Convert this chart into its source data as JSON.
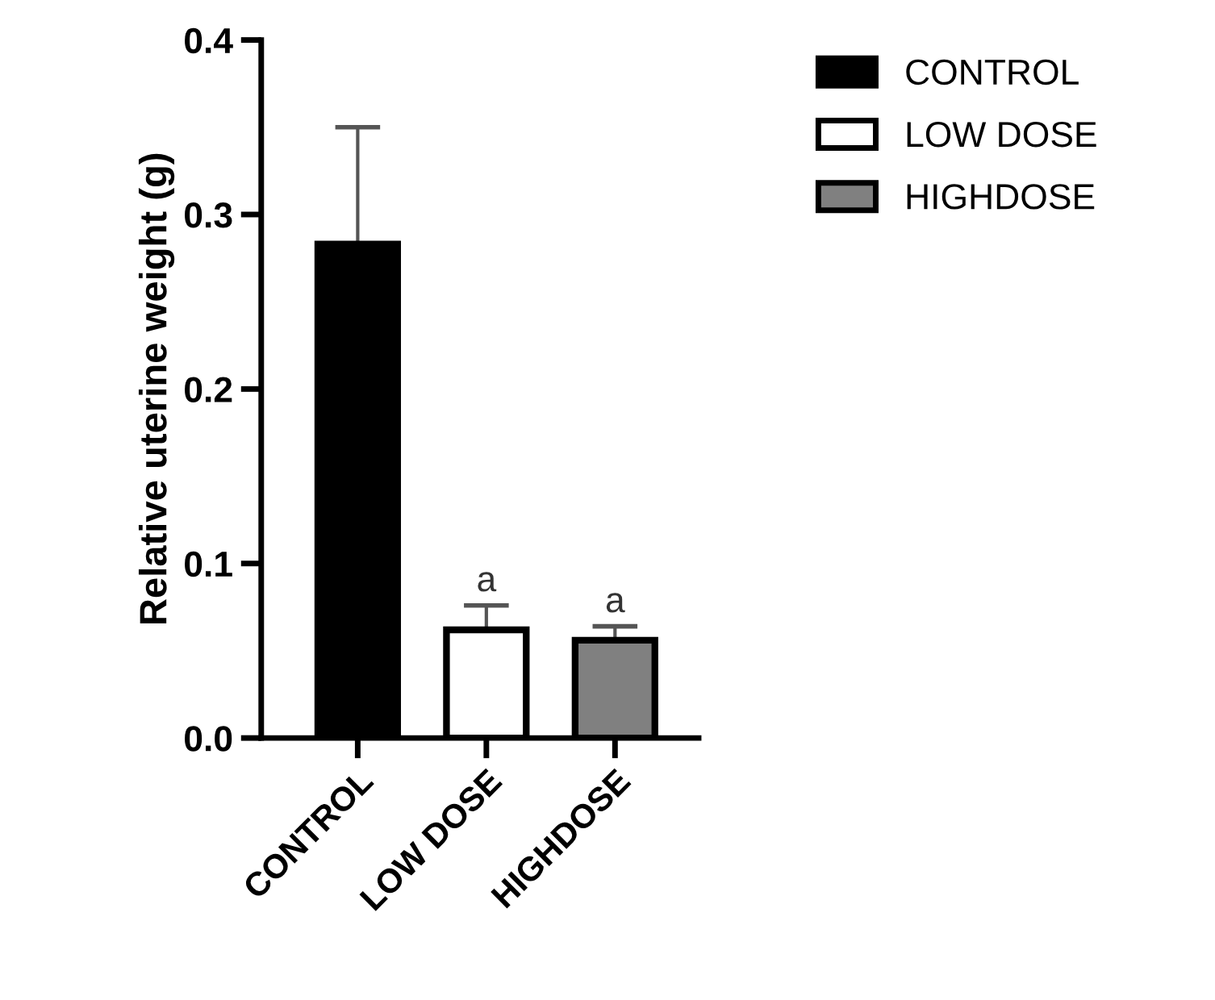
{
  "chart_data": {
    "type": "bar",
    "ylabel": "Relative uterine weight (g)",
    "categories": [
      "CONTROL",
      "LOW DOSE",
      "HIGHDOSE"
    ],
    "series": [
      {
        "name": "CONTROL",
        "color": "#000000",
        "values": [
          0.283,
          null,
          null
        ],
        "errors": [
          0.067,
          null,
          null
        ]
      },
      {
        "name": "LOW DOSE",
        "color": "#ffffff",
        "values": [
          null,
          0.062,
          null
        ],
        "errors": [
          null,
          0.014,
          null
        ]
      },
      {
        "name": "HIGHDOSE",
        "color": "#808080",
        "values": [
          null,
          null,
          0.056
        ],
        "errors": [
          null,
          null,
          0.008
        ]
      }
    ],
    "ylim": [
      0,
      0.4
    ],
    "yticks": [
      {
        "value": 0,
        "label": "0.0"
      },
      0.1,
      0.2,
      0.3,
      0.4
    ],
    "annotations": [
      {
        "text": "a",
        "x": "LOW DOSE",
        "y": 0.076
      },
      {
        "text": "a",
        "x": "HIGHDOSE",
        "y": 0.064
      }
    ],
    "legend": "right",
    "grid": false
  }
}
